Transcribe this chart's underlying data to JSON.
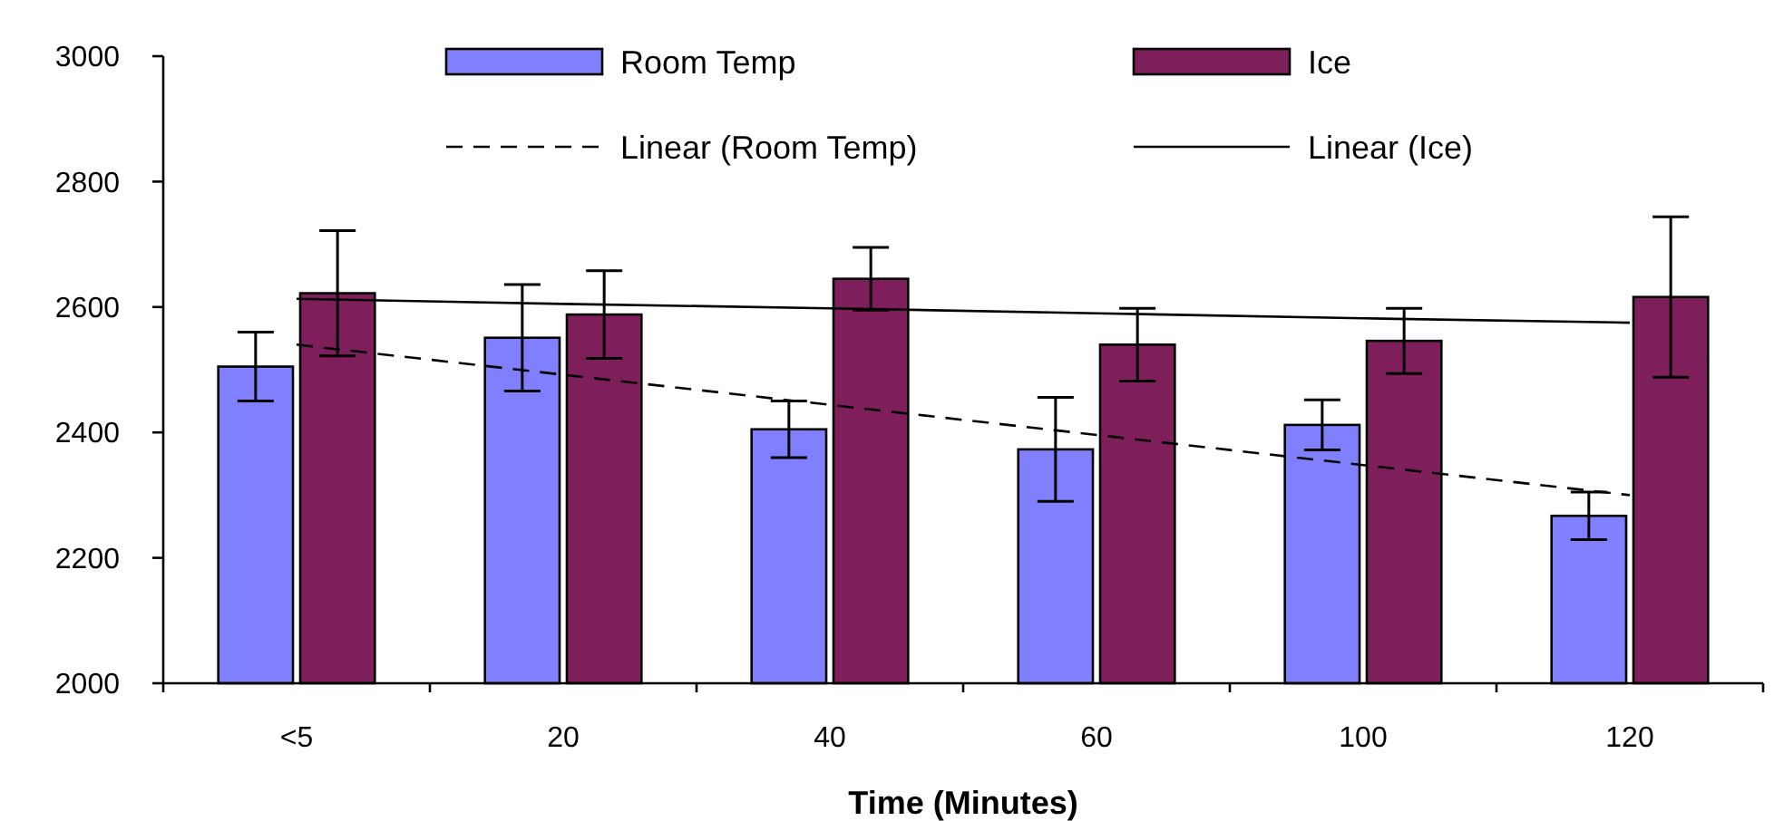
{
  "chart_data": {
    "type": "bar",
    "xlabel": "Time (Minutes)",
    "categories": [
      "<5",
      "20",
      "40",
      "60",
      "100",
      "120"
    ],
    "ylim": [
      2000,
      3000
    ],
    "yticks": [
      2000,
      2200,
      2400,
      2600,
      2800,
      3000
    ],
    "legend": "top",
    "grid": false,
    "series": [
      {
        "name": "Room Temp",
        "color": "#8080ff",
        "values": [
          2505,
          2551,
          2405,
          2373,
          2412,
          2267
        ],
        "errors": [
          55,
          85,
          45,
          83,
          40,
          38
        ]
      },
      {
        "name": "Ice",
        "color": "#7e1e5a",
        "values": [
          2622,
          2588,
          2645,
          2540,
          2546,
          2616
        ],
        "errors": [
          100,
          70,
          50,
          58,
          52,
          128
        ]
      },
      {
        "name": "Linear (Room Temp)",
        "type": "line",
        "line_style": "dashed",
        "color": "#000000",
        "values": [
          2540,
          2492,
          2444,
          2396,
          2348,
          2300
        ]
      },
      {
        "name": "Linear (Ice)",
        "type": "line",
        "line_style": "solid",
        "color": "#000000",
        "values": [
          2613,
          2605,
          2598,
          2590,
          2582,
          2575
        ]
      }
    ]
  }
}
